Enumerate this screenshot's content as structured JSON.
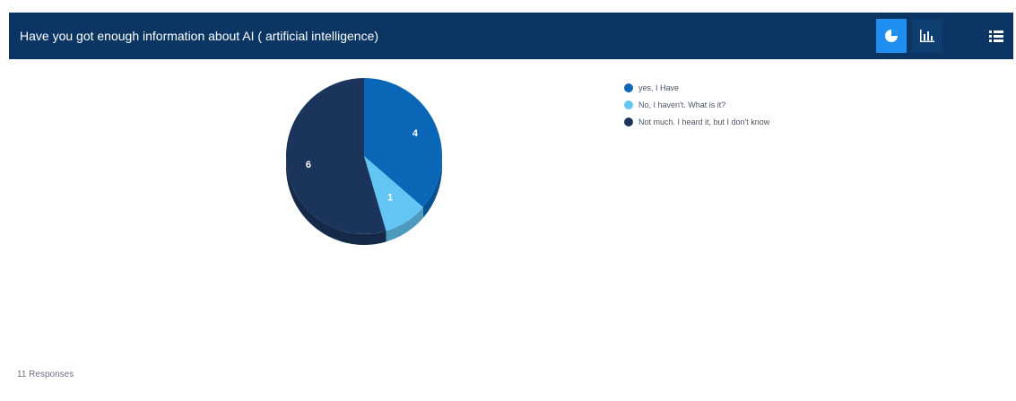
{
  "header": {
    "title": "Have you got enough information about AI ( artificial intelligence)",
    "background": "#0b3663",
    "buttons": [
      {
        "icon": "pie-chart-icon",
        "active": true
      },
      {
        "icon": "bar-chart-icon",
        "active": false
      },
      {
        "icon": "list-icon",
        "active": false
      }
    ]
  },
  "chart_data": {
    "type": "pie",
    "title": "Have you got enough information about AI ( artificial intelligence)",
    "categories": [
      "yes, I Have",
      "No, I haven't. What is it?",
      "Not much. I heard it, but I don't know"
    ],
    "values": [
      4,
      1,
      6
    ],
    "colors": [
      "#0a67b7",
      "#62c5f3",
      "#1b345c"
    ],
    "legend": "top-right",
    "style": "3d"
  },
  "legend": {
    "items": [
      {
        "label": "yes, I Have",
        "color": "#0a67b7"
      },
      {
        "label": "No, I haven't. What is it?",
        "color": "#62c5f3"
      },
      {
        "label": "Not much. I heard it, but I don't know",
        "color": "#1b345c"
      }
    ]
  },
  "footer": {
    "responses": "11 Responses"
  }
}
